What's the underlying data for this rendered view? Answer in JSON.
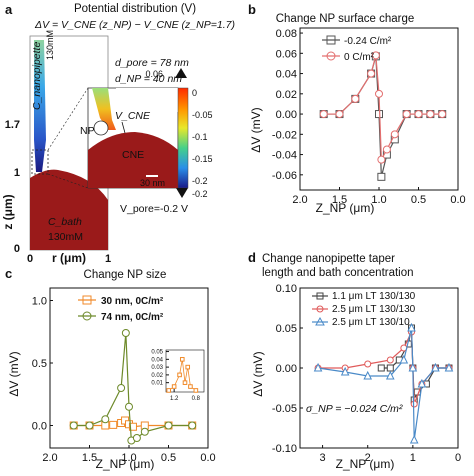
{
  "panels": {
    "a": {
      "label": "a",
      "title": "Potential distribution (V)",
      "equation": "ΔV = V_CNE (z_NP) − V_CNE (z_NP=1.7)",
      "d_pore": "d_pore = 78 nm",
      "d_np": "d_NP = 40 nm",
      "nanopipette_label": "C_nanopipette",
      "nanopipette_conc": "130mM",
      "bath_label": "C_bath",
      "bath_conc": "130mM",
      "np_label": "NP",
      "vcne_label": "V_CNE",
      "cne_label": "CNE",
      "scale_bar": "30 nm",
      "vpore": "V_pore=-0.2 V",
      "zaxis": "z (μm)",
      "raxis": "r (μm)",
      "z_ticks": [
        "1.7",
        "1",
        "0"
      ],
      "r_ticks": [
        "0",
        "1"
      ],
      "colorbar_ticks": [
        "0",
        "-0.05",
        "-0.1",
        "-0.15",
        "-0.2"
      ],
      "colorbar_top": "0.06",
      "colorbar_bottom": "-0.2"
    },
    "b": {
      "label": "b",
      "title": "Change NP surface charge",
      "ylabel": "ΔV (mV)",
      "xlabel": "Z_NP (μm)",
      "legend": [
        "-0.24 C/m²",
        "0 C/m²"
      ]
    },
    "c": {
      "label": "c",
      "title": "Change NP size",
      "ylabel": "ΔV (mV)",
      "xlabel": "Z_NP (μm)",
      "legend": [
        "30 nm, 0C/m²",
        "74 nm, 0C/m²"
      ]
    },
    "d": {
      "label": "d",
      "title_line1": "Change nanopipette taper",
      "title_line2": "length and bath concentration",
      "ylabel": "ΔV (mV)",
      "xlabel": "Z_NP (μm)",
      "legend": [
        "1.1 μm LT 130/130",
        "2.5 μm LT 130/130",
        "2.5 μm LT 130/10"
      ],
      "annotation": "σ_NP = −0.024 C/m²"
    }
  },
  "chart_data": [
    {
      "panel": "b",
      "type": "line",
      "xlim": [
        2.0,
        0.0
      ],
      "ylim": [
        -0.075,
        0.085
      ],
      "xticks": [
        2.0,
        1.5,
        1.0,
        0.5,
        0.0
      ],
      "yticks": [
        -0.06,
        -0.04,
        -0.02,
        0.0,
        0.02,
        0.04,
        0.06,
        0.08
      ],
      "series": [
        {
          "name": "-0.24 C/m²",
          "color": "#555555",
          "marker": "square",
          "x": [
            1.7,
            1.5,
            1.3,
            1.1,
            1.04,
            1.0,
            0.97,
            0.9,
            0.8,
            0.65,
            0.5,
            0.35,
            0.2
          ],
          "y": [
            0.0,
            0.0,
            0.015,
            0.04,
            0.057,
            0.0,
            -0.062,
            -0.04,
            -0.025,
            0.0,
            0.0,
            0.0,
            0.0
          ]
        },
        {
          "name": "0 C/m²",
          "color": "#e36f6f",
          "marker": "circle",
          "x": [
            1.7,
            1.5,
            1.3,
            1.1,
            1.04,
            1.0,
            0.97,
            0.9,
            0.8,
            0.65,
            0.5,
            0.35,
            0.2
          ],
          "y": [
            0.0,
            0.0,
            0.015,
            0.04,
            0.058,
            0.02,
            -0.045,
            -0.035,
            -0.02,
            0.0,
            0.0,
            0.0,
            0.0
          ]
        }
      ]
    },
    {
      "panel": "c",
      "type": "line",
      "xlim": [
        2.0,
        0.0
      ],
      "ylim": [
        -0.18,
        1.1
      ],
      "xticks": [
        2.0,
        1.5,
        1.0,
        0.5,
        0.0
      ],
      "yticks": [
        0.0,
        0.5,
        1.0
      ],
      "series": [
        {
          "name": "30 nm, 0C/m²",
          "color": "#f08a2a",
          "marker": "square",
          "x": [
            1.7,
            1.5,
            1.3,
            1.2,
            1.1,
            1.05,
            1.0,
            0.95,
            0.8,
            0.5,
            0.2
          ],
          "y": [
            0.0,
            0.0,
            0.0,
            0.005,
            0.02,
            0.04,
            0.01,
            -0.01,
            0.0,
            0.0,
            0.0
          ]
        },
        {
          "name": "74 nm, 0C/m²",
          "color": "#6d8a2a",
          "marker": "circle",
          "x": [
            1.7,
            1.5,
            1.3,
            1.1,
            1.04,
            1.0,
            0.97,
            0.9,
            0.8,
            0.5,
            0.2
          ],
          "y": [
            0.0,
            0.0,
            0.05,
            0.3,
            0.74,
            0.15,
            -0.12,
            -0.1,
            -0.05,
            0.0,
            0.0
          ]
        }
      ],
      "inset": {
        "xlim": [
          1.35,
          0.65
        ],
        "ylim": [
          -0.002,
          0.052
        ],
        "xticks": [
          1.2,
          0.8
        ],
        "yticks": [
          0.01,
          0.02,
          0.03,
          0.04,
          0.05
        ],
        "series": [
          {
            "color": "#f08a2a",
            "marker": "square",
            "x": [
              1.3,
              1.2,
              1.1,
              1.05,
              1.0,
              0.95,
              0.9,
              0.8
            ],
            "y": [
              0.0,
              0.005,
              0.02,
              0.04,
              0.01,
              0.03,
              0.005,
              0.0
            ]
          }
        ]
      }
    },
    {
      "panel": "d",
      "type": "line",
      "xlim": [
        3.5,
        0.0
      ],
      "ylim": [
        -0.1,
        0.1
      ],
      "xticks": [
        3,
        2,
        1,
        0
      ],
      "yticks": [
        -0.1,
        -0.05,
        0.0,
        0.05,
        0.1
      ],
      "series": [
        {
          "name": "1.1 μm LT 130/130",
          "color": "#444444",
          "marker": "square",
          "x": [
            1.7,
            1.5,
            1.3,
            1.1,
            1.03,
            1.0,
            0.97,
            0.9,
            0.7,
            0.5,
            0.2
          ],
          "y": [
            0.0,
            0.0,
            0.01,
            0.03,
            0.05,
            0.0,
            -0.04,
            -0.03,
            -0.02,
            0.0,
            0.0
          ]
        },
        {
          "name": "2.5 μm LT 130/130",
          "color": "#e05a5a",
          "marker": "circle",
          "x": [
            3.1,
            2.5,
            2.0,
            1.5,
            1.2,
            1.03,
            1.0,
            0.97,
            0.8,
            0.5,
            0.2
          ],
          "y": [
            0.0,
            0.0,
            0.005,
            0.01,
            0.025,
            0.045,
            0.0,
            -0.045,
            -0.02,
            0.0,
            0.0
          ]
        },
        {
          "name": "2.5 μm LT 130/10",
          "color": "#4a8ac8",
          "marker": "triangle",
          "x": [
            3.1,
            2.5,
            2.0,
            1.5,
            1.2,
            1.03,
            1.0,
            0.97,
            0.8,
            0.5,
            0.2
          ],
          "y": [
            0.0,
            -0.005,
            -0.01,
            -0.01,
            0.01,
            0.05,
            0.0,
            -0.09,
            -0.02,
            0.0,
            0.0
          ]
        }
      ]
    }
  ]
}
